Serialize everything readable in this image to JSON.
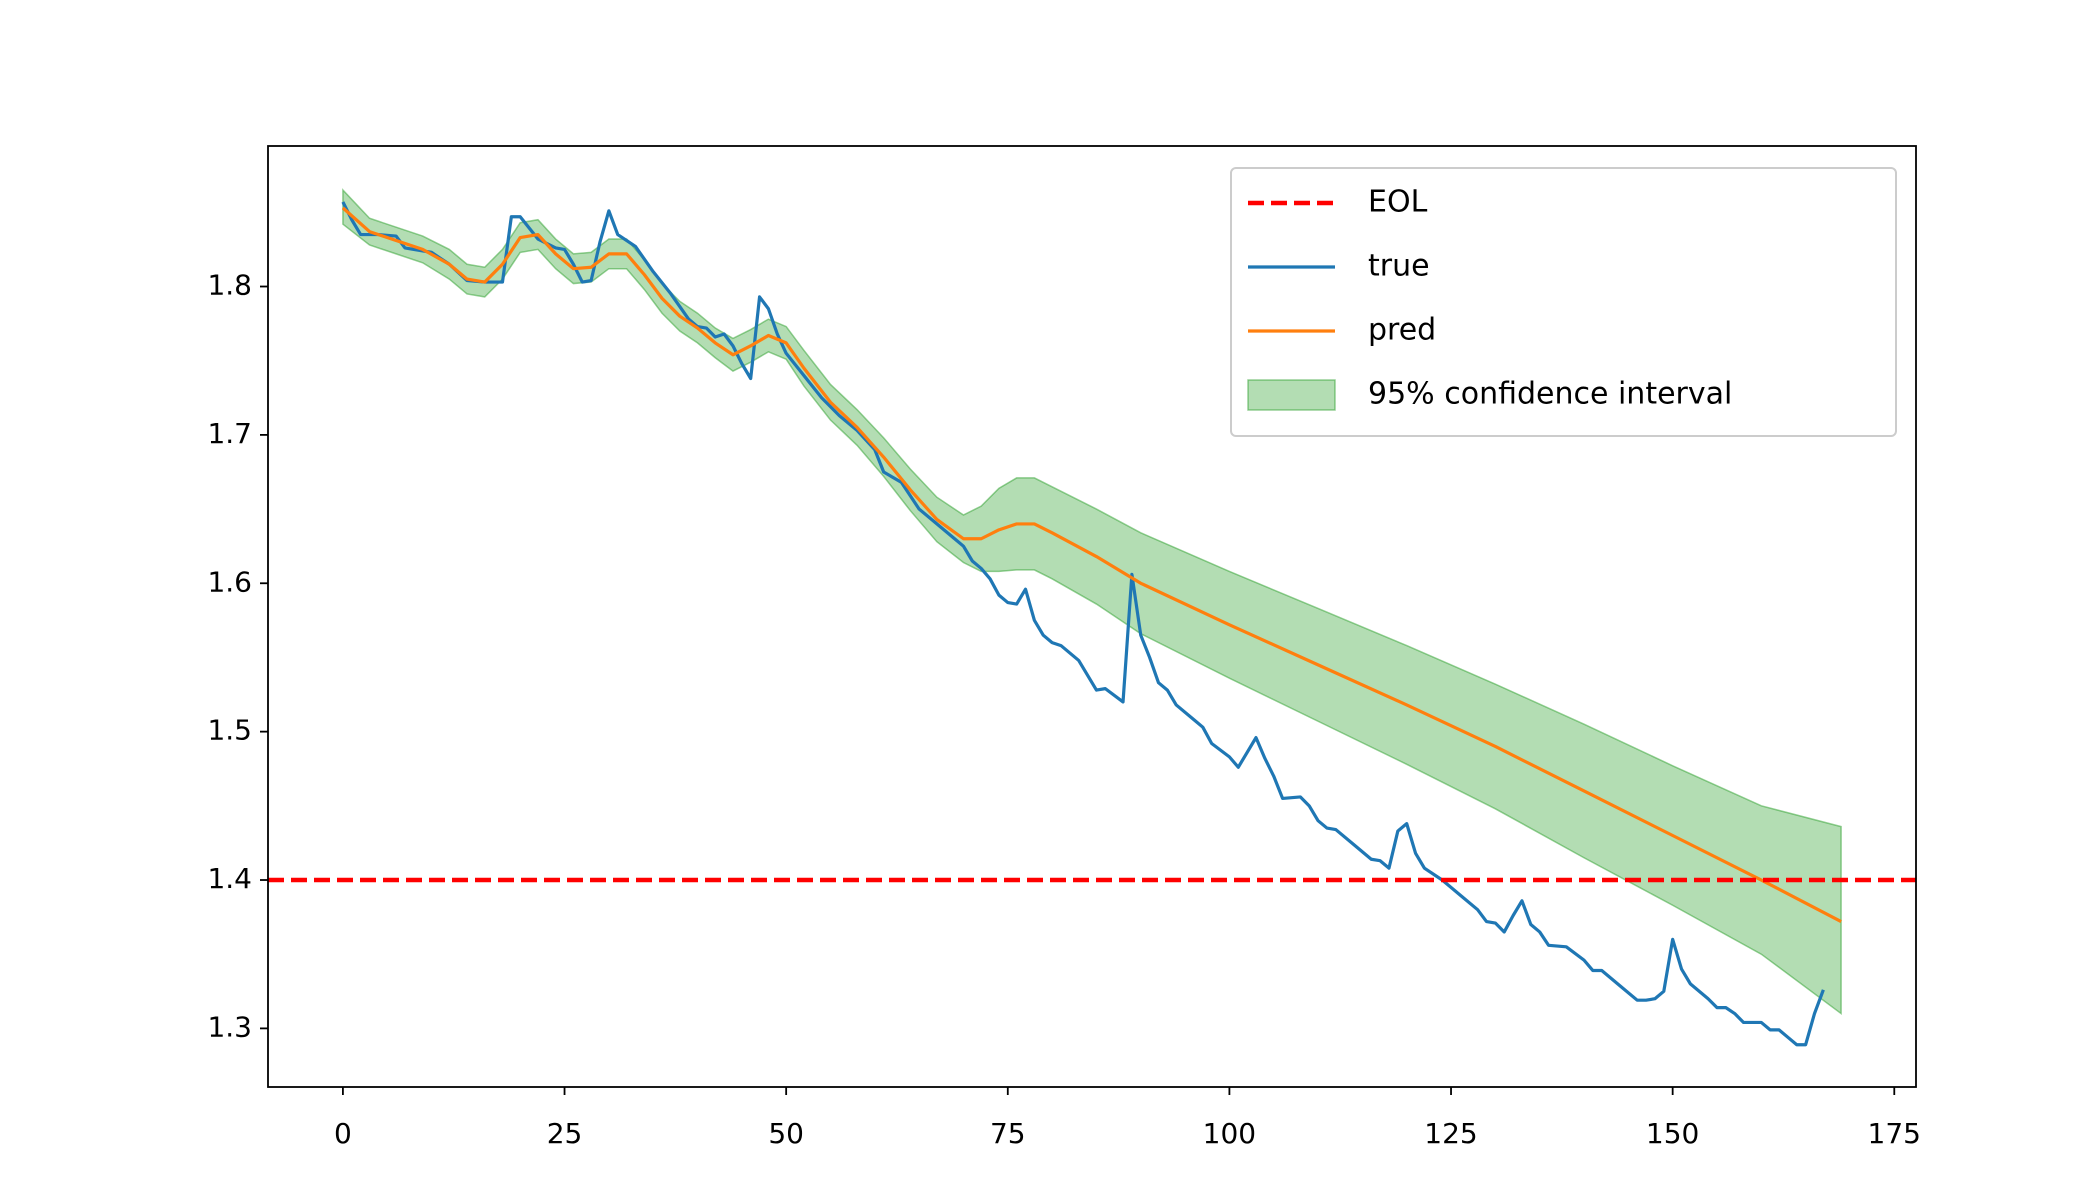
{
  "chart_data": {
    "type": "line",
    "xlim": [
      -8.45,
      177.45
    ],
    "ylim": [
      1.2605,
      1.8947
    ],
    "xticks": [
      0,
      25,
      50,
      75,
      100,
      125,
      150,
      175
    ],
    "yticks": [
      1.3,
      1.4,
      1.5,
      1.6,
      1.7,
      1.8
    ],
    "legend": "upper right",
    "hline": {
      "name": "EOL",
      "color": "#ff0000",
      "value": 1.4,
      "dashed": true
    },
    "series": [
      {
        "name": "true",
        "color": "#1f77b4",
        "x": [
          0,
          1,
          2,
          4,
          6,
          7,
          10,
          12,
          14,
          16,
          18,
          19,
          20,
          22,
          24,
          25,
          26,
          27,
          28,
          29,
          30,
          31,
          33,
          35,
          37,
          39,
          40,
          41,
          42,
          43,
          44,
          45,
          46,
          47,
          48,
          49,
          50,
          52,
          54,
          56,
          58,
          60,
          61,
          63,
          65,
          67,
          69,
          70,
          71,
          72,
          73,
          74,
          75,
          76,
          77,
          78,
          79,
          80,
          81,
          83,
          85,
          86,
          88,
          89,
          90,
          91,
          92,
          93,
          94,
          96,
          97,
          98,
          100,
          101,
          102,
          103,
          104,
          105,
          106,
          108,
          109,
          110,
          111,
          112,
          114,
          116,
          117,
          118,
          119,
          120,
          121,
          122,
          124,
          126,
          128,
          129,
          130,
          131,
          132,
          133,
          134,
          135,
          136,
          138,
          140,
          141,
          142,
          144,
          146,
          147,
          148,
          149,
          150,
          151,
          152,
          154,
          155,
          156,
          157,
          158,
          160,
          161,
          162,
          163,
          164,
          165,
          166,
          167
        ],
        "values": [
          1.857,
          1.845,
          1.835,
          1.835,
          1.834,
          1.826,
          1.823,
          1.815,
          1.804,
          1.803,
          1.803,
          1.847,
          1.847,
          1.832,
          1.826,
          1.825,
          1.815,
          1.803,
          1.804,
          1.83,
          1.851,
          1.835,
          1.827,
          1.81,
          1.795,
          1.778,
          1.773,
          1.772,
          1.766,
          1.768,
          1.76,
          1.748,
          1.738,
          1.793,
          1.785,
          1.768,
          1.755,
          1.74,
          1.725,
          1.713,
          1.703,
          1.69,
          1.675,
          1.668,
          1.65,
          1.64,
          1.63,
          1.625,
          1.615,
          1.61,
          1.603,
          1.592,
          1.587,
          1.586,
          1.596,
          1.575,
          1.565,
          1.56,
          1.558,
          1.548,
          1.528,
          1.529,
          1.52,
          1.606,
          1.565,
          1.55,
          1.533,
          1.528,
          1.518,
          1.508,
          1.503,
          1.492,
          1.483,
          1.476,
          1.486,
          1.496,
          1.482,
          1.47,
          1.455,
          1.456,
          1.45,
          1.44,
          1.435,
          1.434,
          1.424,
          1.414,
          1.413,
          1.408,
          1.433,
          1.438,
          1.418,
          1.408,
          1.4,
          1.39,
          1.38,
          1.372,
          1.371,
          1.365,
          1.376,
          1.386,
          1.37,
          1.365,
          1.356,
          1.355,
          1.346,
          1.339,
          1.339,
          1.329,
          1.319,
          1.319,
          1.32,
          1.325,
          1.36,
          1.34,
          1.33,
          1.32,
          1.314,
          1.314,
          1.31,
          1.304,
          1.304,
          1.299,
          1.299,
          1.294,
          1.289,
          1.289,
          1.31,
          1.326
        ]
      },
      {
        "name": "pred",
        "color": "#ff7f0e",
        "x": [
          0,
          3,
          6,
          9,
          12,
          14,
          16,
          18,
          20,
          22,
          24,
          26,
          28,
          30,
          32,
          34,
          36,
          38,
          40,
          42,
          44,
          46,
          48,
          50,
          52,
          55,
          58,
          61,
          64,
          67,
          70,
          72,
          74,
          76,
          78,
          80,
          85,
          90,
          100,
          110,
          120,
          130,
          140,
          150,
          160,
          169
        ],
        "values": [
          1.853,
          1.837,
          1.831,
          1.825,
          1.815,
          1.805,
          1.803,
          1.815,
          1.833,
          1.835,
          1.822,
          1.812,
          1.813,
          1.822,
          1.822,
          1.808,
          1.792,
          1.78,
          1.772,
          1.762,
          1.754,
          1.76,
          1.767,
          1.762,
          1.745,
          1.722,
          1.705,
          1.685,
          1.663,
          1.643,
          1.63,
          1.63,
          1.636,
          1.64,
          1.64,
          1.634,
          1.618,
          1.6,
          1.572,
          1.545,
          1.518,
          1.49,
          1.46,
          1.43,
          1.4,
          1.372
        ]
      }
    ],
    "band": {
      "name": "95% confidence interval",
      "color": "#2ca02c",
      "x": [
        0,
        3,
        6,
        9,
        12,
        14,
        16,
        18,
        20,
        22,
        24,
        26,
        28,
        30,
        32,
        34,
        36,
        38,
        40,
        42,
        44,
        46,
        48,
        50,
        52,
        55,
        58,
        61,
        64,
        67,
        70,
        72,
        74,
        76,
        78,
        80,
        85,
        90,
        100,
        110,
        120,
        130,
        140,
        150,
        160,
        169
      ],
      "upper": [
        1.865,
        1.846,
        1.84,
        1.834,
        1.825,
        1.815,
        1.813,
        1.825,
        1.843,
        1.845,
        1.832,
        1.822,
        1.823,
        1.832,
        1.832,
        1.818,
        1.802,
        1.79,
        1.782,
        1.772,
        1.765,
        1.771,
        1.778,
        1.773,
        1.757,
        1.734,
        1.717,
        1.698,
        1.677,
        1.658,
        1.646,
        1.652,
        1.664,
        1.671,
        1.671,
        1.665,
        1.65,
        1.634,
        1.608,
        1.583,
        1.558,
        1.532,
        1.505,
        1.477,
        1.45,
        1.436
      ],
      "lower": [
        1.842,
        1.828,
        1.822,
        1.816,
        1.805,
        1.795,
        1.793,
        1.805,
        1.823,
        1.825,
        1.812,
        1.802,
        1.803,
        1.812,
        1.812,
        1.798,
        1.782,
        1.77,
        1.762,
        1.752,
        1.743,
        1.749,
        1.756,
        1.751,
        1.733,
        1.71,
        1.693,
        1.672,
        1.649,
        1.628,
        1.614,
        1.608,
        1.608,
        1.609,
        1.609,
        1.603,
        1.586,
        1.566,
        1.536,
        1.507,
        1.478,
        1.448,
        1.415,
        1.383,
        1.35,
        1.31
      ]
    }
  }
}
